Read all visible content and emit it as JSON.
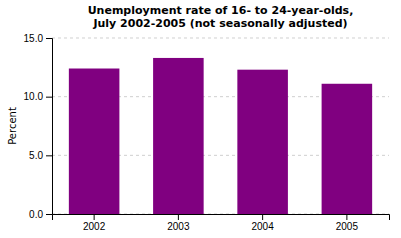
{
  "chart_data": {
    "type": "bar",
    "title": "Unemployment rate of 16- to 24-year-olds,\nJuly 2002-2005 (not seasonally adjusted)",
    "ylabel": "Percent",
    "categories": [
      "2002",
      "2003",
      "2004",
      "2005"
    ],
    "values": [
      12.4,
      13.3,
      12.3,
      11.1
    ],
    "color": "#800080",
    "ylim": [
      0.0,
      15.0
    ],
    "yticks": [
      {
        "value": 0.0,
        "label": "0.0"
      },
      {
        "value": 5.0,
        "label": "5.0"
      },
      {
        "value": 10.0,
        "label": "10.0"
      },
      {
        "value": 15.0,
        "label": "15.0"
      }
    ],
    "grid": true
  }
}
